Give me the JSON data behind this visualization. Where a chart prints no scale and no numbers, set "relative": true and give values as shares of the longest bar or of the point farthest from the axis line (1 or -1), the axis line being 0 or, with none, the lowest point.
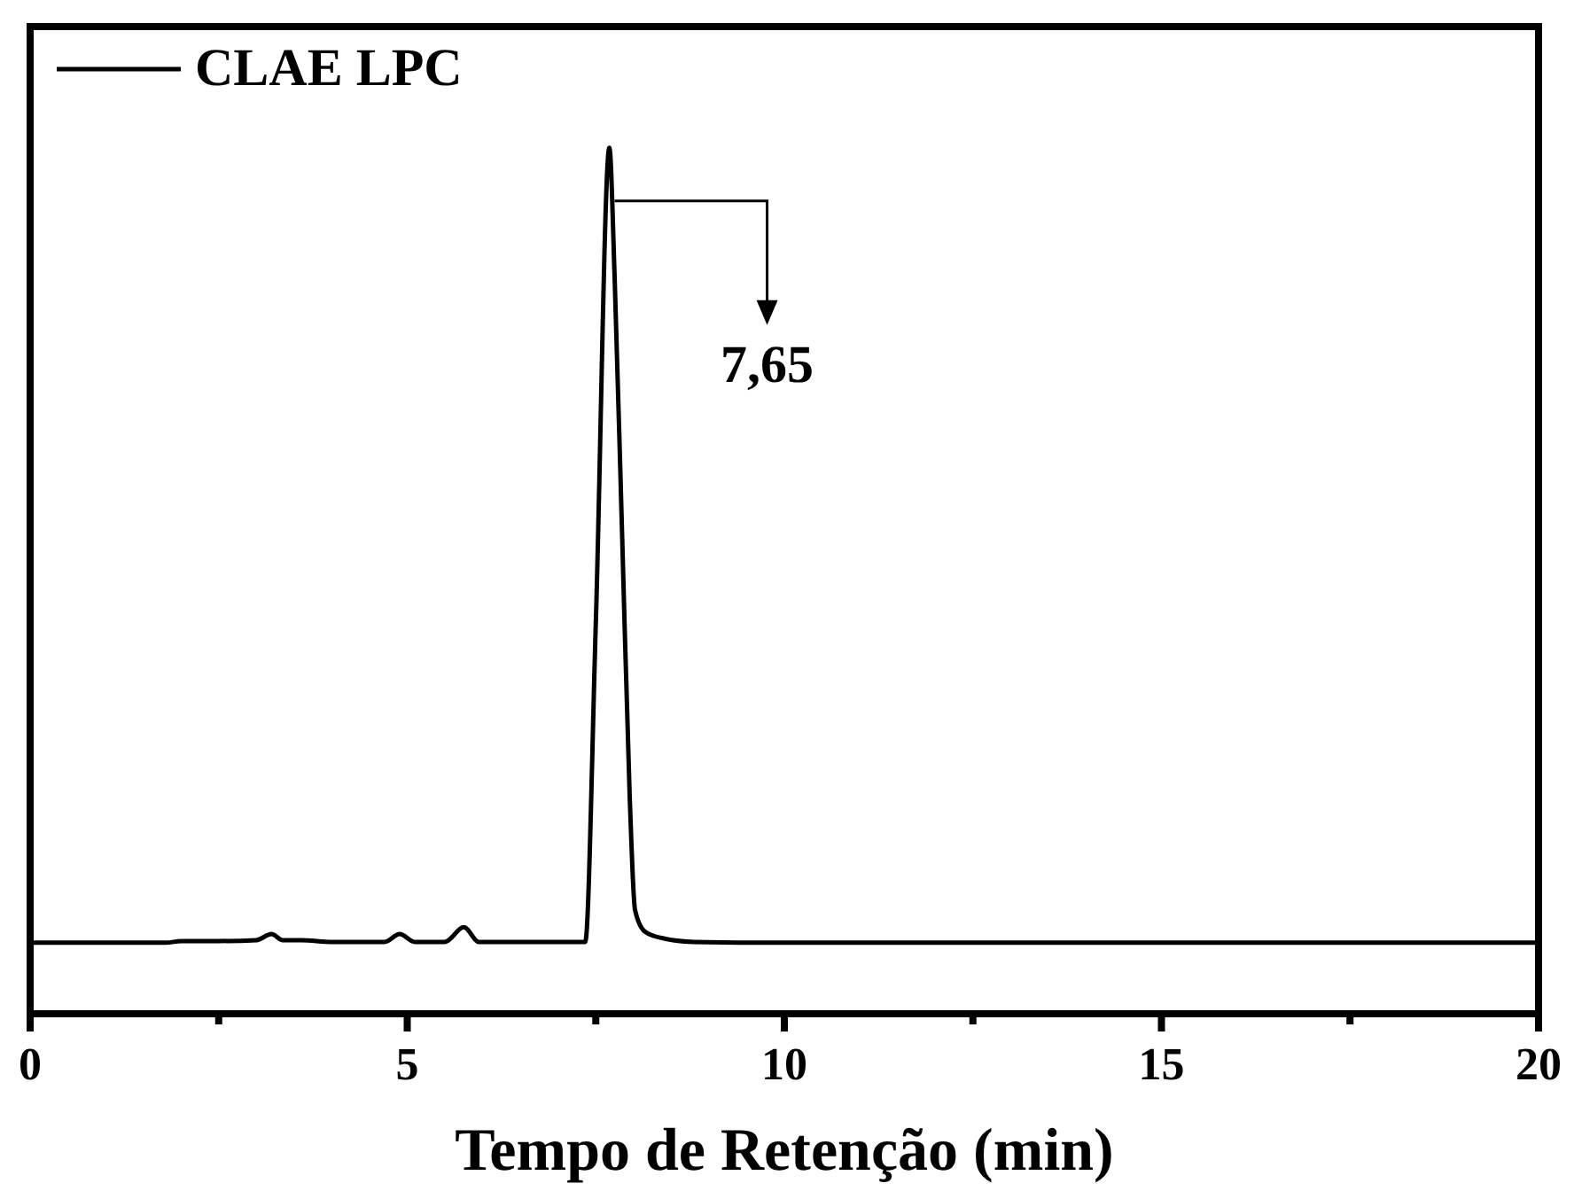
{
  "chart_data": {
    "type": "line",
    "relative": true,
    "xlabel": "Tempo de Retenção (min)",
    "xlim": [
      0,
      20
    ],
    "xticks": [
      0,
      {
        "value": 2.5,
        "label": null
      },
      5,
      {
        "value": 7.5,
        "label": null
      },
      10,
      {
        "value": 12.5,
        "label": null
      },
      15,
      {
        "value": 17.5,
        "label": null
      },
      20
    ],
    "legend": "top left",
    "annotations": [
      "7,65"
    ],
    "series": [
      {
        "name": "CLAE LPC",
        "color": "#000000",
        "x": [
          0,
          1.8,
          2.0,
          2.5,
          3.0,
          3.2,
          3.35,
          3.6,
          4.0,
          4.7,
          4.9,
          5.1,
          5.5,
          5.75,
          5.95,
          7.36,
          7.5,
          7.68,
          7.75,
          7.85,
          7.95,
          8.02,
          8.15,
          8.4,
          8.8,
          10,
          20
        ],
        "values": [
          0.082,
          0.082,
          0.084,
          0.084,
          0.085,
          0.092,
          0.085,
          0.085,
          0.083,
          0.083,
          0.092,
          0.083,
          0.083,
          0.1,
          0.083,
          0.083,
          0.45,
          1.0,
          0.85,
          0.55,
          0.25,
          0.12,
          0.095,
          0.087,
          0.083,
          0.082,
          0.082
        ]
      }
    ]
  }
}
